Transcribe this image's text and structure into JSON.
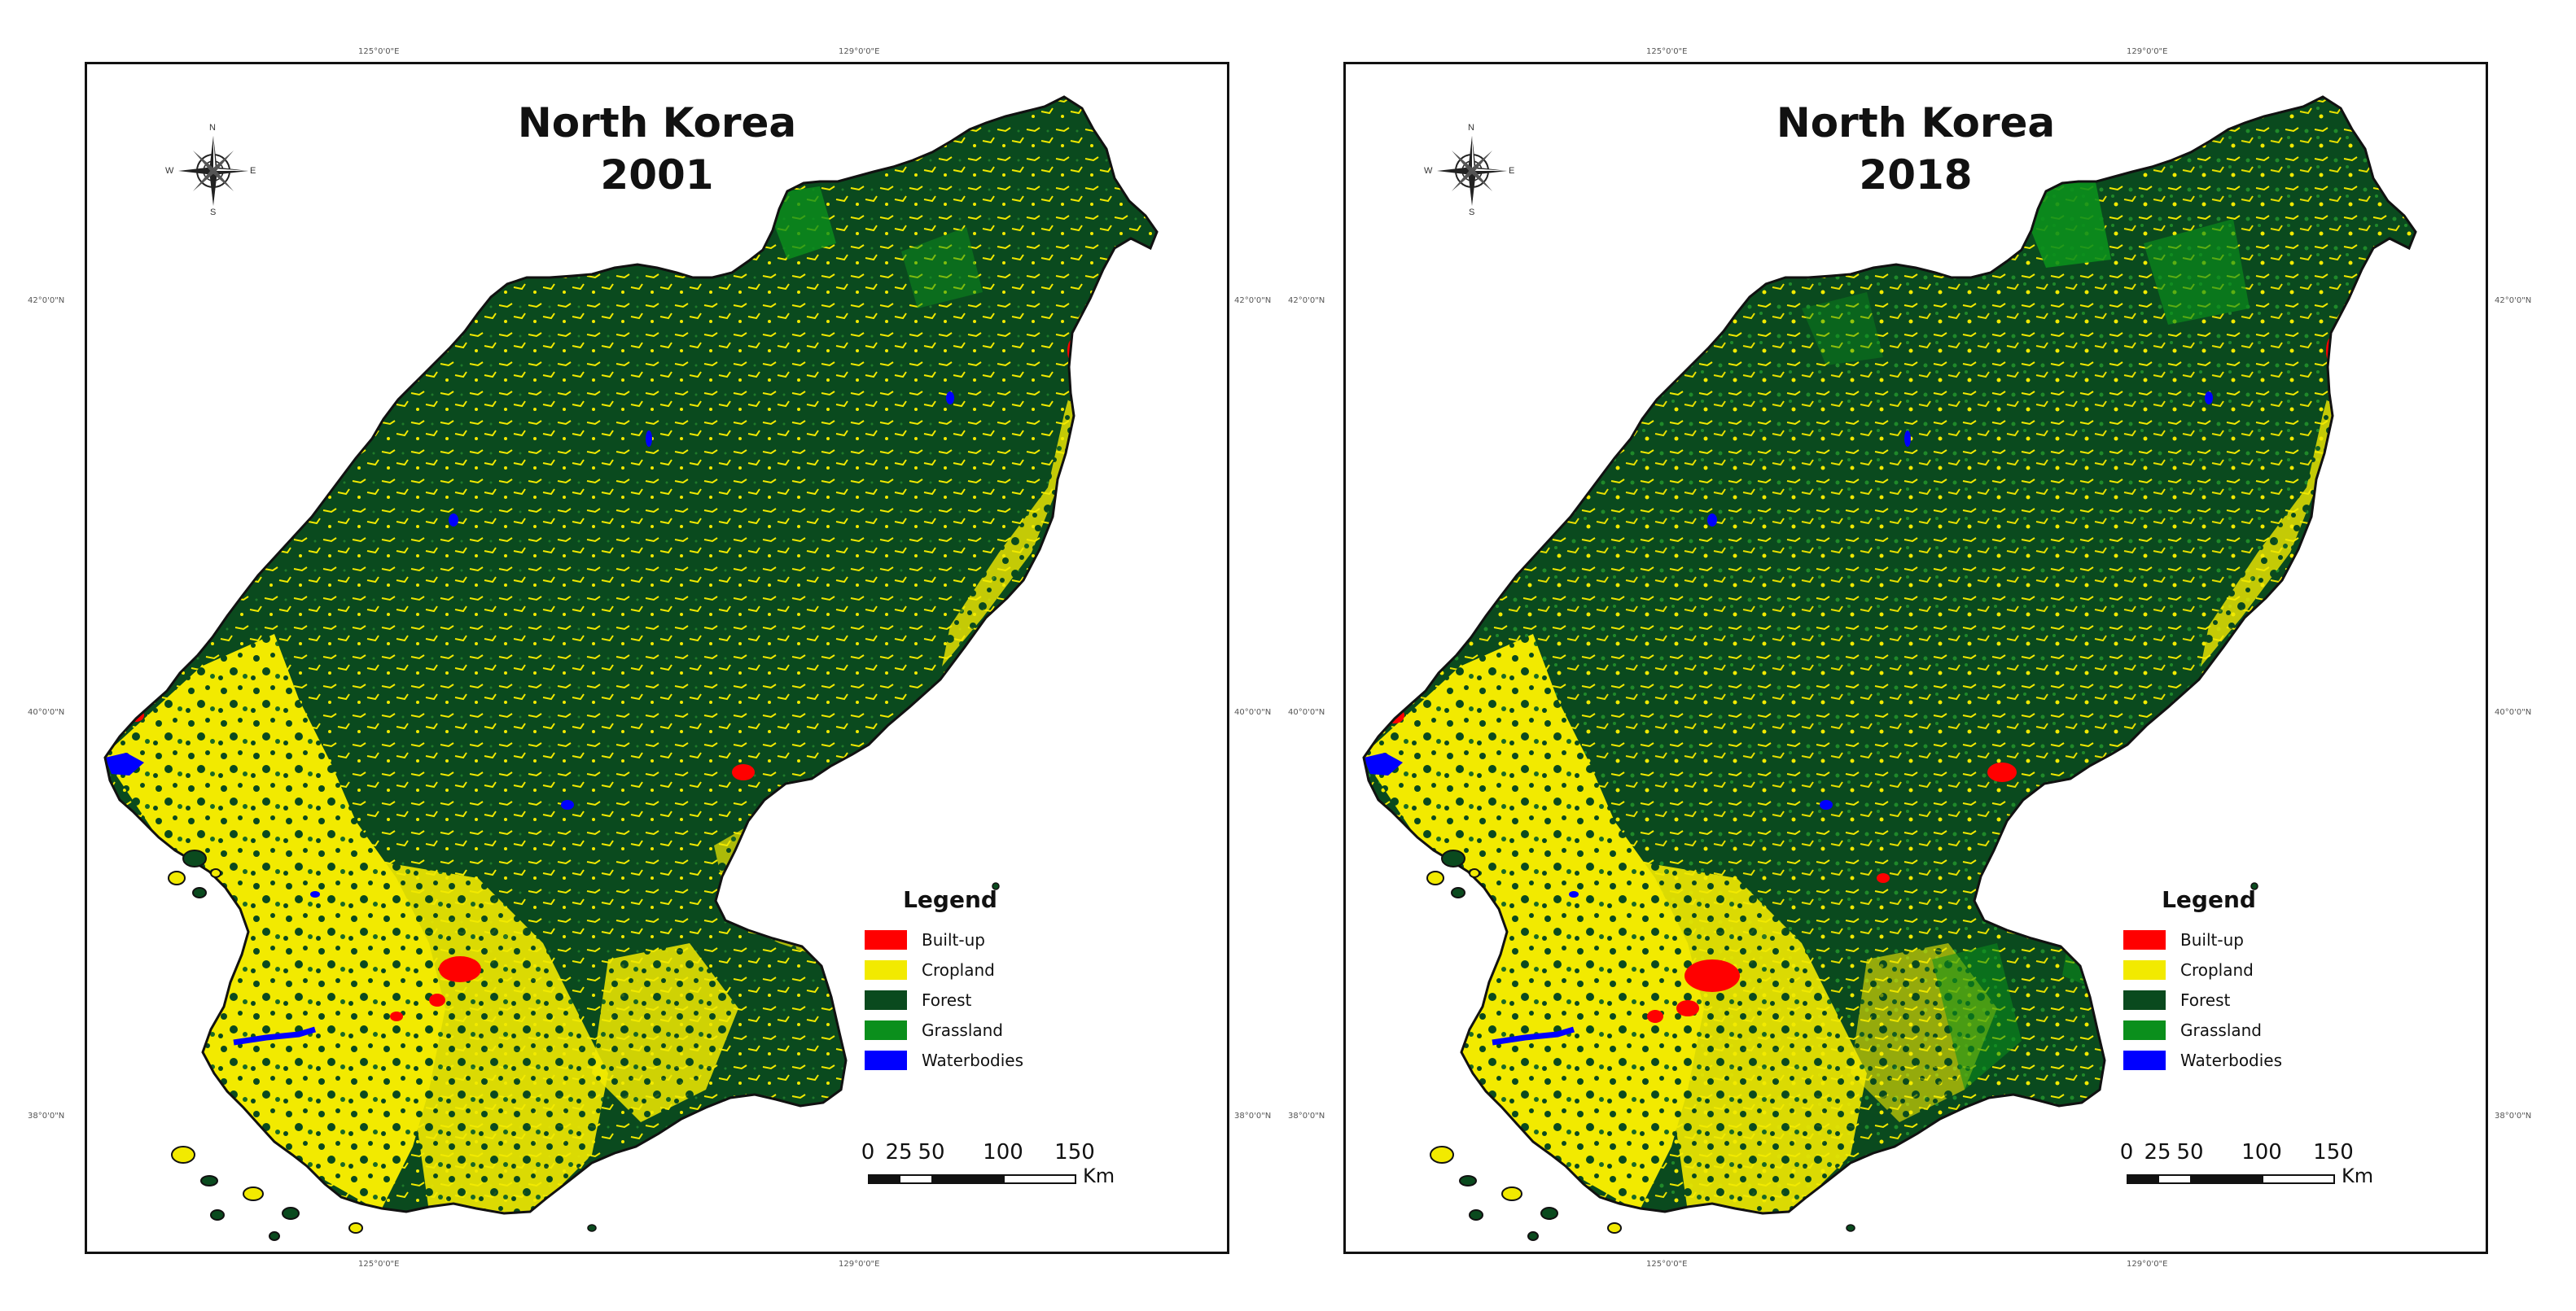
{
  "panels": [
    {
      "title_line1": "North Korea",
      "title_line2": "2001",
      "legend_title": "Legend",
      "legend": [
        {
          "label": "Built-up",
          "color": "#ff0000"
        },
        {
          "label": "Cropland",
          "color": "#f2ea00"
        },
        {
          "label": "Forest",
          "color": "#0a4a1e"
        },
        {
          "label": "Grassland",
          "color": "#0b8f1c"
        },
        {
          "label": "Waterbodies",
          "color": "#0000ff"
        }
      ],
      "scale": {
        "labels": [
          "0",
          "25",
          "50",
          "100",
          "150"
        ],
        "unit": "Km"
      },
      "compass": {
        "n": "N",
        "s": "S",
        "e": "E",
        "w": "W"
      },
      "graticule": {
        "top": [
          "125°0'0\"E",
          "129°0'0\"E"
        ],
        "bottom": [
          "125°0'0\"E",
          "129°0'0\"E"
        ],
        "left": [
          "42°0'0\"N",
          "40°0'0\"N",
          "38°0'0\"N"
        ],
        "right": [
          "42°0'0\"N",
          "40°0'0\"N",
          "38°0'0\"N"
        ]
      }
    },
    {
      "title_line1": "North Korea",
      "title_line2": "2018",
      "legend_title": "Legend",
      "legend": [
        {
          "label": "Built-up",
          "color": "#ff0000"
        },
        {
          "label": "Cropland",
          "color": "#f2ea00"
        },
        {
          "label": "Forest",
          "color": "#0a4a1e"
        },
        {
          "label": "Grassland",
          "color": "#0b8f1c"
        },
        {
          "label": "Waterbodies",
          "color": "#0000ff"
        }
      ],
      "scale": {
        "labels": [
          "0",
          "25",
          "50",
          "100",
          "150"
        ],
        "unit": "Km"
      },
      "compass": {
        "n": "N",
        "s": "S",
        "e": "E",
        "w": "W"
      },
      "graticule": {
        "top": [
          "125°0'0\"E",
          "129°0'0\"E"
        ],
        "bottom": [
          "125°0'0\"E",
          "129°0'0\"E"
        ],
        "left": [
          "42°0'0\"N",
          "40°0'0\"N",
          "38°0'0\"N"
        ],
        "right": [
          "42°0'0\"N",
          "40°0'0\"N",
          "38°0'0\"N"
        ]
      }
    }
  ]
}
